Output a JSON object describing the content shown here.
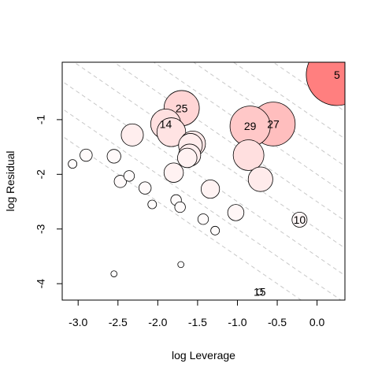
{
  "chart_data": {
    "type": "scatter",
    "title": "",
    "xlabel": "log Leverage",
    "ylabel": "log Residual",
    "xlim": [
      -3.2,
      0.35
    ],
    "ylim": [
      -4.3,
      0.05
    ],
    "xticks": [
      -3.0,
      -2.5,
      -2.0,
      -1.5,
      -1.0,
      -0.5,
      0.0
    ],
    "xtick_labels": [
      "-3.0",
      "-2.5",
      "-2.0",
      "-1.5",
      "-1.0",
      "-0.5",
      "0.0"
    ],
    "yticks": [
      -1,
      -2,
      -3,
      -4
    ],
    "ytick_labels": [
      "-1",
      "-2",
      "-3",
      "-4"
    ],
    "grid": false,
    "diagonal_reference_lines": [
      -4.5,
      -4.0,
      -3.5,
      -3.0,
      -2.5,
      -2.0,
      -1.5,
      -1.0,
      -0.5,
      0.0
    ],
    "colors": {
      "point_fill_min": "#ffffff",
      "point_fill_max": "#ff7f7f",
      "point_stroke": "#000000",
      "reference_line": "#c8c8c8"
    },
    "points": [
      {
        "x": 0.25,
        "y": -0.18,
        "size": 1.0,
        "label": "5"
      },
      {
        "x": -1.7,
        "y": -0.79,
        "size": 0.33,
        "label": "25"
      },
      {
        "x": -0.55,
        "y": -1.08,
        "size": 0.51,
        "label": "27"
      },
      {
        "x": -0.84,
        "y": -1.12,
        "size": 0.43,
        "label": "29"
      },
      {
        "x": -1.9,
        "y": -1.08,
        "size": 0.24,
        "label": "14"
      },
      {
        "x": -1.83,
        "y": -1.23,
        "size": 0.22,
        "label": ""
      },
      {
        "x": -2.32,
        "y": -1.28,
        "size": 0.13,
        "label": ""
      },
      {
        "x": -1.56,
        "y": -1.44,
        "size": 0.17,
        "label": ""
      },
      {
        "x": -1.59,
        "y": -1.47,
        "size": 0.15,
        "label": ""
      },
      {
        "x": -1.6,
        "y": -1.65,
        "size": 0.13,
        "label": ""
      },
      {
        "x": -1.63,
        "y": -1.7,
        "size": 0.1,
        "label": ""
      },
      {
        "x": -0.86,
        "y": -1.65,
        "size": 0.25,
        "label": ""
      },
      {
        "x": -0.71,
        "y": -2.09,
        "size": 0.16,
        "label": ""
      },
      {
        "x": -1.8,
        "y": -1.97,
        "size": 0.1,
        "label": ""
      },
      {
        "x": -1.34,
        "y": -2.27,
        "size": 0.09,
        "label": ""
      },
      {
        "x": -1.02,
        "y": -2.7,
        "size": 0.07,
        "label": ""
      },
      {
        "x": -2.55,
        "y": -1.67,
        "size": 0.05,
        "label": ""
      },
      {
        "x": -2.9,
        "y": -1.65,
        "size": 0.04,
        "label": ""
      },
      {
        "x": -3.07,
        "y": -1.81,
        "size": 0.02,
        "label": ""
      },
      {
        "x": -2.47,
        "y": -2.13,
        "size": 0.04,
        "label": ""
      },
      {
        "x": -2.36,
        "y": -2.03,
        "size": 0.03,
        "label": ""
      },
      {
        "x": -2.16,
        "y": -2.25,
        "size": 0.04,
        "label": ""
      },
      {
        "x": -1.77,
        "y": -2.47,
        "size": 0.03,
        "label": ""
      },
      {
        "x": -1.72,
        "y": -2.6,
        "size": 0.03,
        "label": ""
      },
      {
        "x": -2.07,
        "y": -2.55,
        "size": 0.02,
        "label": ""
      },
      {
        "x": -1.43,
        "y": -2.82,
        "size": 0.03,
        "label": ""
      },
      {
        "x": -1.28,
        "y": -3.03,
        "size": 0.02,
        "label": ""
      },
      {
        "x": -0.22,
        "y": -2.83,
        "size": 0.06,
        "label": "10"
      },
      {
        "x": -1.71,
        "y": -3.65,
        "size": 0.01,
        "label": ""
      },
      {
        "x": -2.55,
        "y": -3.82,
        "size": 0.01,
        "label": ""
      },
      {
        "x": -0.72,
        "y": -4.15,
        "size": 0.01,
        "label": "15"
      }
    ]
  }
}
